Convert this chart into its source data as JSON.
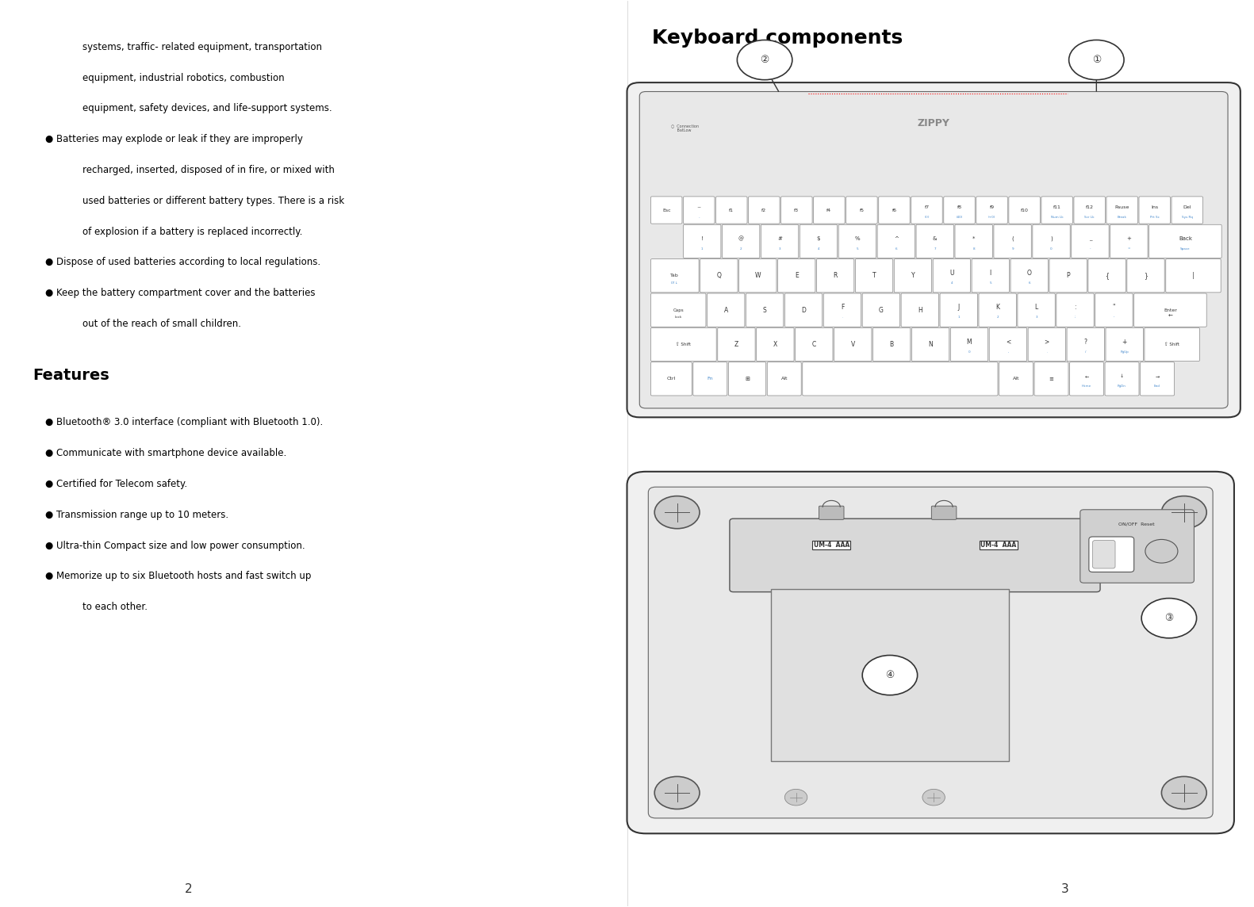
{
  "background_color": "#ffffff",
  "page_width": 15.81,
  "page_height": 11.44,
  "left_col_text": [
    "systems, traffic- related equipment, transportation",
    "equipment, industrial robotics, combustion",
    "equipment, safety devices, and life-support systems.",
    "● Batteries may explode or leak if they are improperly",
    "recharged, inserted, disposed of in fire, or mixed with",
    "used batteries or different battery types. There is a risk",
    "of explosion if a battery is replaced incorrectly.",
    "● Dispose of used batteries according to local regulations.",
    "● Keep the battery compartment cover and the batteries",
    "out of the reach of small children."
  ],
  "features_title": "Features",
  "features_items": [
    "Bluetooth® 3.0 interface (compliant with Bluetooth 1.0).",
    "Communicate with smartphone device available.",
    "Certified for Telecom safety.",
    "Transmission range up to 10 meters.",
    "Ultra-thin Compact size and low power consumption.",
    "Memorize up to six Bluetooth hosts and fast switch up",
    "to each other."
  ],
  "right_col_title": "Keyboard components",
  "page_num_left": "2",
  "page_num_right": "3",
  "text_color": "#000000",
  "gray_color": "#555555",
  "light_gray": "#aaaaaa",
  "medium_gray": "#888888"
}
